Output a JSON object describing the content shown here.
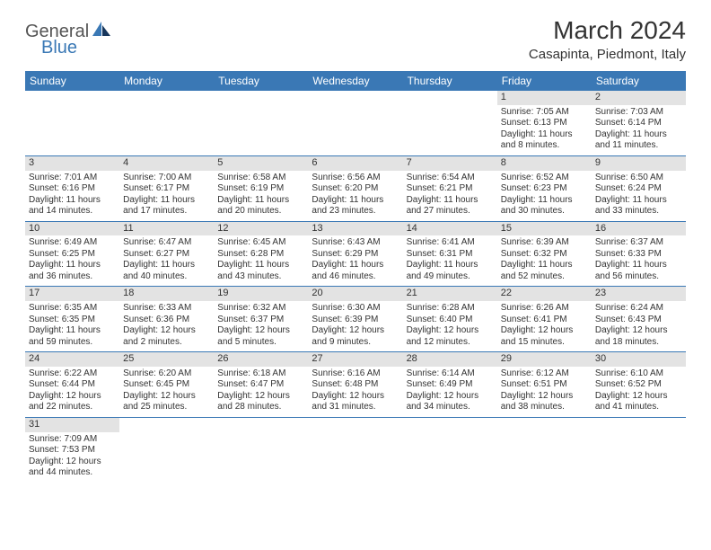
{
  "logo": {
    "text1": "General",
    "text2": "Blue"
  },
  "title": "March 2024",
  "location": "Casapinta, Piedmont, Italy",
  "colors": {
    "header_bg": "#3a78b5",
    "daynum_bg": "#e3e3e3",
    "text": "#333333",
    "logo_gray": "#555555",
    "logo_blue": "#3a78b5"
  },
  "day_labels": [
    "Sunday",
    "Monday",
    "Tuesday",
    "Wednesday",
    "Thursday",
    "Friday",
    "Saturday"
  ],
  "weeks": [
    [
      {
        "n": "",
        "sr": "",
        "ss": "",
        "dl": ""
      },
      {
        "n": "",
        "sr": "",
        "ss": "",
        "dl": ""
      },
      {
        "n": "",
        "sr": "",
        "ss": "",
        "dl": ""
      },
      {
        "n": "",
        "sr": "",
        "ss": "",
        "dl": ""
      },
      {
        "n": "",
        "sr": "",
        "ss": "",
        "dl": ""
      },
      {
        "n": "1",
        "sr": "Sunrise: 7:05 AM",
        "ss": "Sunset: 6:13 PM",
        "dl": "Daylight: 11 hours and 8 minutes."
      },
      {
        "n": "2",
        "sr": "Sunrise: 7:03 AM",
        "ss": "Sunset: 6:14 PM",
        "dl": "Daylight: 11 hours and 11 minutes."
      }
    ],
    [
      {
        "n": "3",
        "sr": "Sunrise: 7:01 AM",
        "ss": "Sunset: 6:16 PM",
        "dl": "Daylight: 11 hours and 14 minutes."
      },
      {
        "n": "4",
        "sr": "Sunrise: 7:00 AM",
        "ss": "Sunset: 6:17 PM",
        "dl": "Daylight: 11 hours and 17 minutes."
      },
      {
        "n": "5",
        "sr": "Sunrise: 6:58 AM",
        "ss": "Sunset: 6:19 PM",
        "dl": "Daylight: 11 hours and 20 minutes."
      },
      {
        "n": "6",
        "sr": "Sunrise: 6:56 AM",
        "ss": "Sunset: 6:20 PM",
        "dl": "Daylight: 11 hours and 23 minutes."
      },
      {
        "n": "7",
        "sr": "Sunrise: 6:54 AM",
        "ss": "Sunset: 6:21 PM",
        "dl": "Daylight: 11 hours and 27 minutes."
      },
      {
        "n": "8",
        "sr": "Sunrise: 6:52 AM",
        "ss": "Sunset: 6:23 PM",
        "dl": "Daylight: 11 hours and 30 minutes."
      },
      {
        "n": "9",
        "sr": "Sunrise: 6:50 AM",
        "ss": "Sunset: 6:24 PM",
        "dl": "Daylight: 11 hours and 33 minutes."
      }
    ],
    [
      {
        "n": "10",
        "sr": "Sunrise: 6:49 AM",
        "ss": "Sunset: 6:25 PM",
        "dl": "Daylight: 11 hours and 36 minutes."
      },
      {
        "n": "11",
        "sr": "Sunrise: 6:47 AM",
        "ss": "Sunset: 6:27 PM",
        "dl": "Daylight: 11 hours and 40 minutes."
      },
      {
        "n": "12",
        "sr": "Sunrise: 6:45 AM",
        "ss": "Sunset: 6:28 PM",
        "dl": "Daylight: 11 hours and 43 minutes."
      },
      {
        "n": "13",
        "sr": "Sunrise: 6:43 AM",
        "ss": "Sunset: 6:29 PM",
        "dl": "Daylight: 11 hours and 46 minutes."
      },
      {
        "n": "14",
        "sr": "Sunrise: 6:41 AM",
        "ss": "Sunset: 6:31 PM",
        "dl": "Daylight: 11 hours and 49 minutes."
      },
      {
        "n": "15",
        "sr": "Sunrise: 6:39 AM",
        "ss": "Sunset: 6:32 PM",
        "dl": "Daylight: 11 hours and 52 minutes."
      },
      {
        "n": "16",
        "sr": "Sunrise: 6:37 AM",
        "ss": "Sunset: 6:33 PM",
        "dl": "Daylight: 11 hours and 56 minutes."
      }
    ],
    [
      {
        "n": "17",
        "sr": "Sunrise: 6:35 AM",
        "ss": "Sunset: 6:35 PM",
        "dl": "Daylight: 11 hours and 59 minutes."
      },
      {
        "n": "18",
        "sr": "Sunrise: 6:33 AM",
        "ss": "Sunset: 6:36 PM",
        "dl": "Daylight: 12 hours and 2 minutes."
      },
      {
        "n": "19",
        "sr": "Sunrise: 6:32 AM",
        "ss": "Sunset: 6:37 PM",
        "dl": "Daylight: 12 hours and 5 minutes."
      },
      {
        "n": "20",
        "sr": "Sunrise: 6:30 AM",
        "ss": "Sunset: 6:39 PM",
        "dl": "Daylight: 12 hours and 9 minutes."
      },
      {
        "n": "21",
        "sr": "Sunrise: 6:28 AM",
        "ss": "Sunset: 6:40 PM",
        "dl": "Daylight: 12 hours and 12 minutes."
      },
      {
        "n": "22",
        "sr": "Sunrise: 6:26 AM",
        "ss": "Sunset: 6:41 PM",
        "dl": "Daylight: 12 hours and 15 minutes."
      },
      {
        "n": "23",
        "sr": "Sunrise: 6:24 AM",
        "ss": "Sunset: 6:43 PM",
        "dl": "Daylight: 12 hours and 18 minutes."
      }
    ],
    [
      {
        "n": "24",
        "sr": "Sunrise: 6:22 AM",
        "ss": "Sunset: 6:44 PM",
        "dl": "Daylight: 12 hours and 22 minutes."
      },
      {
        "n": "25",
        "sr": "Sunrise: 6:20 AM",
        "ss": "Sunset: 6:45 PM",
        "dl": "Daylight: 12 hours and 25 minutes."
      },
      {
        "n": "26",
        "sr": "Sunrise: 6:18 AM",
        "ss": "Sunset: 6:47 PM",
        "dl": "Daylight: 12 hours and 28 minutes."
      },
      {
        "n": "27",
        "sr": "Sunrise: 6:16 AM",
        "ss": "Sunset: 6:48 PM",
        "dl": "Daylight: 12 hours and 31 minutes."
      },
      {
        "n": "28",
        "sr": "Sunrise: 6:14 AM",
        "ss": "Sunset: 6:49 PM",
        "dl": "Daylight: 12 hours and 34 minutes."
      },
      {
        "n": "29",
        "sr": "Sunrise: 6:12 AM",
        "ss": "Sunset: 6:51 PM",
        "dl": "Daylight: 12 hours and 38 minutes."
      },
      {
        "n": "30",
        "sr": "Sunrise: 6:10 AM",
        "ss": "Sunset: 6:52 PM",
        "dl": "Daylight: 12 hours and 41 minutes."
      }
    ],
    [
      {
        "n": "31",
        "sr": "Sunrise: 7:09 AM",
        "ss": "Sunset: 7:53 PM",
        "dl": "Daylight: 12 hours and 44 minutes."
      },
      {
        "n": "",
        "sr": "",
        "ss": "",
        "dl": ""
      },
      {
        "n": "",
        "sr": "",
        "ss": "",
        "dl": ""
      },
      {
        "n": "",
        "sr": "",
        "ss": "",
        "dl": ""
      },
      {
        "n": "",
        "sr": "",
        "ss": "",
        "dl": ""
      },
      {
        "n": "",
        "sr": "",
        "ss": "",
        "dl": ""
      },
      {
        "n": "",
        "sr": "",
        "ss": "",
        "dl": ""
      }
    ]
  ]
}
